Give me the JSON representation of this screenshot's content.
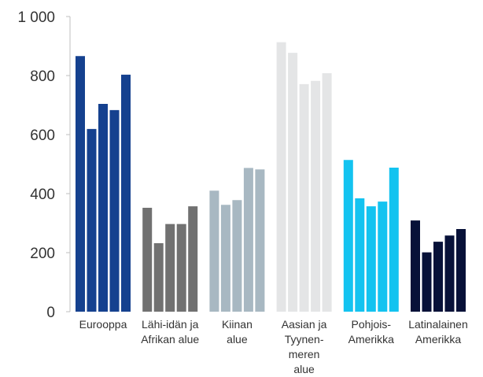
{
  "chart_data": {
    "type": "bar",
    "ylim": [
      0,
      1000
    ],
    "yticks": [
      0,
      200,
      400,
      600,
      800,
      1000
    ],
    "ytick_labels": [
      "0",
      "200",
      "400",
      "600",
      "800",
      "1 000"
    ],
    "grid": false,
    "legend": "none",
    "groups": [
      {
        "label_lines": [
          "Eurooppa"
        ],
        "color": "#15418f",
        "values": [
          866,
          619,
          704,
          683,
          803
        ]
      },
      {
        "label_lines": [
          "Lähi-idän ja",
          "Afrikan alue"
        ],
        "color": "#717171",
        "values": [
          352,
          232,
          297,
          297,
          357
        ]
      },
      {
        "label_lines": [
          "Kiinan",
          "alue"
        ],
        "color": "#a8b8c2",
        "values": [
          410,
          362,
          378,
          487,
          482
        ]
      },
      {
        "label_lines": [
          "Aasian ja",
          "Tyynen-",
          "meren",
          "alue"
        ],
        "color": "#e4e5e6",
        "values": [
          913,
          877,
          771,
          782,
          808
        ]
      },
      {
        "label_lines": [
          "Pohjois-",
          "Amerikka"
        ],
        "color": "#13c3f0",
        "values": [
          514,
          384,
          357,
          373,
          488
        ]
      },
      {
        "label_lines": [
          "Latinalainen",
          "Amerikka"
        ],
        "color": "#071138",
        "values": [
          309,
          201,
          237,
          258,
          280
        ]
      }
    ]
  }
}
